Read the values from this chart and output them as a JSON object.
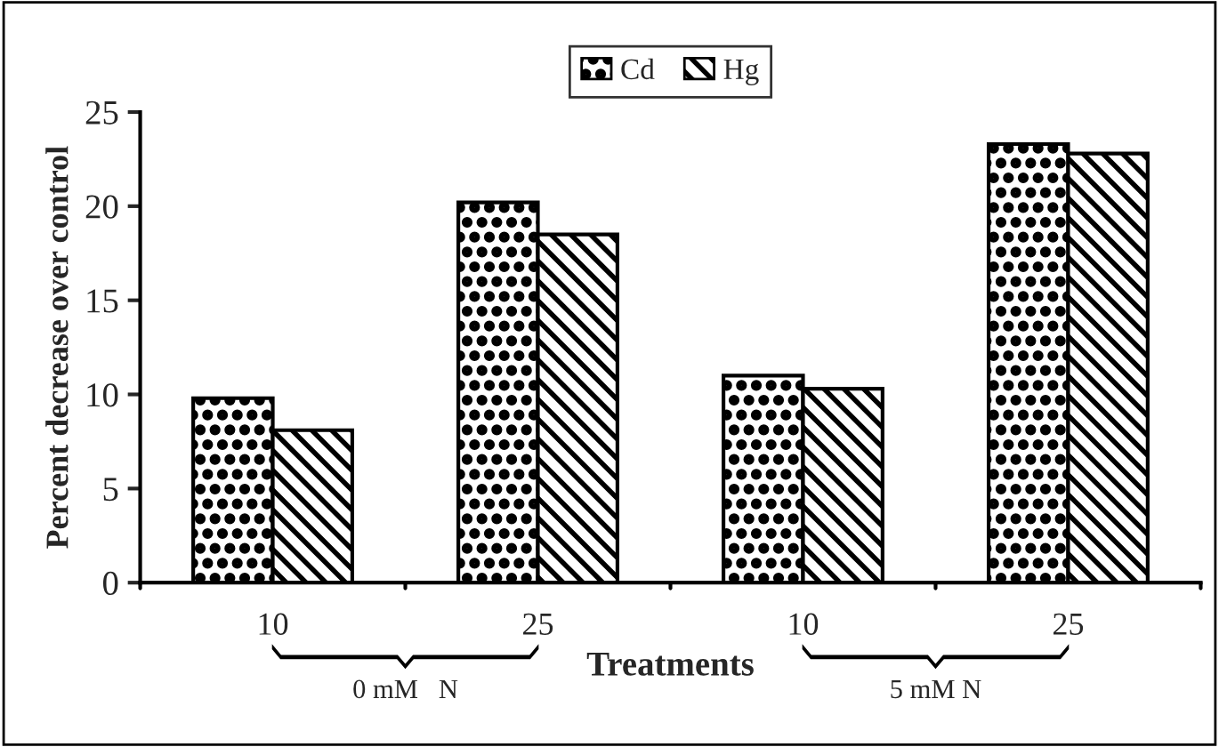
{
  "chart_data": {
    "type": "bar",
    "ylabel": "Percent decrease over control",
    "xlabel": "Treatments",
    "categories": [
      "10",
      "25",
      "10",
      "25"
    ],
    "series": [
      {
        "name": "Cd",
        "color": "#000000",
        "values": [
          9.8,
          20.2,
          11.0,
          23.3
        ]
      },
      {
        "name": "Hg",
        "color": "#000000",
        "values": [
          8.1,
          18.5,
          10.3,
          22.8
        ]
      }
    ],
    "annotations": [
      "0 mM   N",
      "5 mM N"
    ],
    "ylim": [
      0,
      25
    ],
    "yticks": [
      0,
      5,
      10,
      15,
      20,
      25
    ],
    "grid": false,
    "legend": "top"
  }
}
